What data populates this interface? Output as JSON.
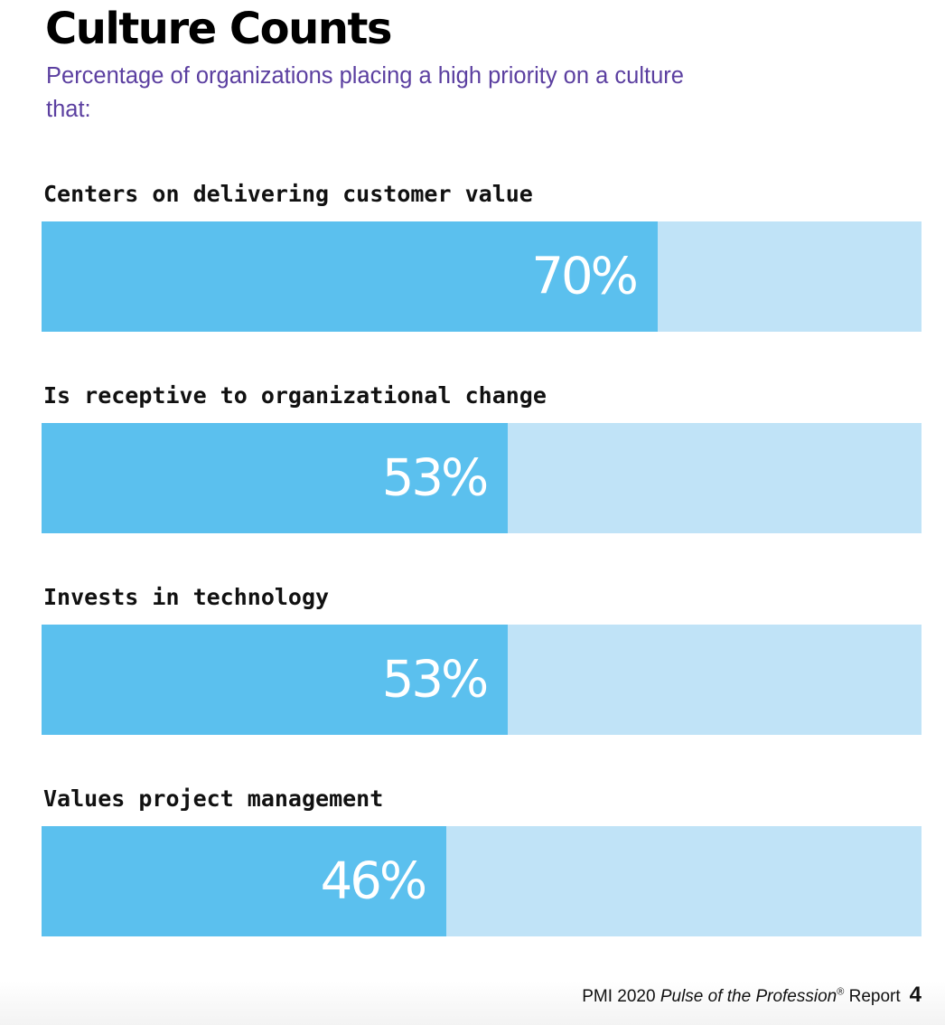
{
  "title": "Culture Counts",
  "subtitle": "Percentage of organizations placing a high priority on a culture that:",
  "colors": {
    "bar_fill": "#5bc0ee",
    "bar_track": "#c0e3f7",
    "subtitle": "#5b3fa0",
    "value_label": "#ffffff"
  },
  "chart_data": {
    "type": "bar",
    "orientation": "horizontal",
    "title": "Culture Counts",
    "subtitle": "Percentage of organizations placing a high priority on a culture that:",
    "categories": [
      "Centers on delivering customer value",
      "Is receptive to organizational change",
      "Invests in technology",
      "Values project management"
    ],
    "values": [
      70,
      53,
      53,
      46
    ],
    "value_labels": [
      "70%",
      "53%",
      "53%",
      "46%"
    ],
    "xlim": [
      0,
      100
    ],
    "unit": "%",
    "grid": false,
    "legend": "none"
  },
  "footer": {
    "prefix": "PMI 2020 ",
    "italic": "Pulse of the Profession",
    "registered": "®",
    "suffix": " Report",
    "page_number": "4"
  }
}
